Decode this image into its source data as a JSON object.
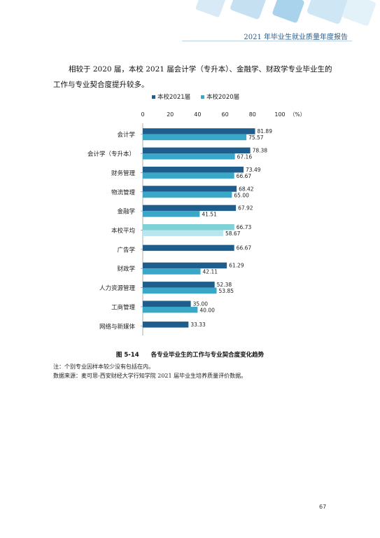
{
  "header": {
    "title": "2021 年毕业生就业质量年度报告"
  },
  "intro": {
    "text": "相较于 2020 届，本校 2021 届会计学（专升本）、金融学、财政学专业毕业生的工作与专业契合度提升较多。"
  },
  "chart_data": {
    "type": "bar",
    "orientation": "horizontal",
    "categories": [
      "会计学",
      "会计学（专升本）",
      "财务管理",
      "物流管理",
      "金融学",
      "本校平均",
      "广告学",
      "财政学",
      "人力资源管理",
      "工商管理",
      "网络与新媒体"
    ],
    "series": [
      {
        "name": "本校2021届",
        "values": [
          81.89,
          78.38,
          73.49,
          68.42,
          67.92,
          66.73,
          66.67,
          61.29,
          52.38,
          35.0,
          33.33
        ]
      },
      {
        "name": "本校2020届",
        "values": [
          75.57,
          67.16,
          66.67,
          65.0,
          41.51,
          58.67,
          null,
          42.11,
          53.85,
          40.0,
          null
        ]
      }
    ],
    "value_labels": [
      [
        "81.89",
        "78.38",
        "73.49",
        "68.42",
        "67.92",
        "66.73",
        "66.67",
        "61.29",
        "52.38",
        "35.00",
        "33.33"
      ],
      [
        "75.57",
        "67.16",
        "66.67",
        "65.00",
        "41.51",
        "58.67",
        "",
        "42.11",
        "53.85",
        "40.00",
        ""
      ]
    ],
    "xlim": [
      0,
      100
    ],
    "x_ticks": [
      "0",
      "20",
      "40",
      "60",
      "80",
      "100"
    ],
    "unit": "（%）",
    "legend_position": "top",
    "colors": {
      "series_2021": "#1f5d8c",
      "series_2020": "#39a7c7",
      "highlight_2021": "#7fd1d6",
      "highlight_2020": "#b7e6ee"
    },
    "highlight_category": "本校平均"
  },
  "caption": {
    "number": "图 5-14",
    "title": "各专业毕业生的工作与专业契合度变化趋势"
  },
  "notes": {
    "note": "注：个别专业因样本较少没有包括在内。",
    "source": "数据来源：麦可思-西安财经大学行知学院 2021 届毕业生培养质量评价数据。"
  },
  "page": {
    "number": "67"
  }
}
